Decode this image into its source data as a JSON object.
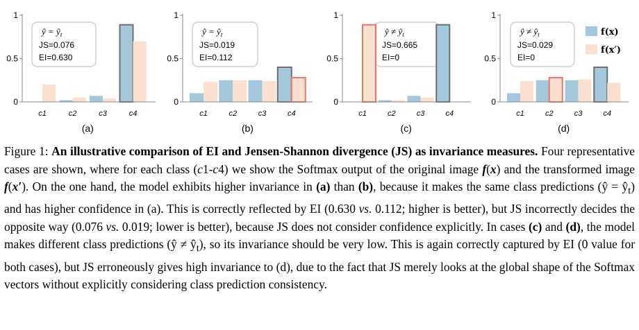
{
  "chart_data": [
    {
      "type": "bar",
      "panel_label": "(a)",
      "categories": [
        "c1",
        "c2",
        "c3",
        "c4"
      ],
      "series": [
        {
          "name": "f(x)",
          "values": [
            0.0,
            0.02,
            0.07,
            0.89
          ]
        },
        {
          "name": "f(x')",
          "values": [
            0.2,
            0.05,
            0.04,
            0.7
          ]
        }
      ],
      "annotation": {
        "header": "ŷ = ŷt",
        "js": "JS=0.076",
        "ei": "EI=0.630"
      },
      "ylim": [
        0,
        1
      ],
      "yticks": [
        "0",
        "0.5",
        "1"
      ],
      "outlined_bars": [
        [
          0,
          3
        ]
      ]
    },
    {
      "type": "bar",
      "panel_label": "(b)",
      "categories": [
        "c1",
        "c2",
        "c3",
        "c4"
      ],
      "series": [
        {
          "name": "f(x)",
          "values": [
            0.1,
            0.25,
            0.25,
            0.4
          ]
        },
        {
          "name": "f(x')",
          "values": [
            0.23,
            0.25,
            0.24,
            0.28
          ]
        }
      ],
      "annotation": {
        "header": "ŷ = ŷt",
        "js": "JS=0.019",
        "ei": "EI=0.112"
      },
      "ylim": [
        0,
        1
      ],
      "yticks": [
        "0",
        "0.5",
        "1"
      ],
      "outlined_bars": [
        [
          0,
          3
        ],
        [
          1,
          3
        ]
      ]
    },
    {
      "type": "bar",
      "panel_label": "(c)",
      "categories": [
        "c1",
        "c2",
        "c3",
        "c4"
      ],
      "series": [
        {
          "name": "f(x)",
          "values": [
            0.0,
            0.02,
            0.07,
            0.89
          ]
        },
        {
          "name": "f(x')",
          "values": [
            0.89,
            0.02,
            0.05,
            0.0
          ]
        }
      ],
      "annotation": {
        "header": "ŷ ≠ ŷt",
        "js": "JS=0.665",
        "ei": "EI=0"
      },
      "ylim": [
        0,
        1
      ],
      "yticks": [
        "0",
        "0.5",
        "1"
      ],
      "outlined_bars": [
        [
          0,
          3
        ],
        [
          1,
          0
        ]
      ]
    },
    {
      "type": "bar",
      "panel_label": "(d)",
      "categories": [
        "c1",
        "c2",
        "c3",
        "c4"
      ],
      "series": [
        {
          "name": "f(x)",
          "values": [
            0.1,
            0.25,
            0.25,
            0.4
          ]
        },
        {
          "name": "f(x')",
          "values": [
            0.24,
            0.28,
            0.26,
            0.22
          ]
        }
      ],
      "annotation": {
        "header": "ŷ ≠ ŷt",
        "js": "JS=0.029",
        "ei": "EI=0"
      },
      "ylim": [
        0,
        1
      ],
      "yticks": [
        "0",
        "0.5",
        "1"
      ],
      "outlined_bars": [
        [
          0,
          3
        ],
        [
          1,
          1
        ]
      ],
      "legend": {
        "placement": "top-right",
        "entries": [
          "f(x)",
          "f(x′)"
        ]
      }
    }
  ],
  "colors": {
    "orig": "#a3c8dc",
    "trans": "#fbe0d0",
    "outline_orig": "#6f6f6f",
    "outline_trans": "#e8776a",
    "axis": "#8a8a8a",
    "box": "#c8c8c8"
  },
  "caption": {
    "fig_label": "Figure 1:",
    "bold_title": "An illustrative comparison of EI and Jensen-Shannon divergence (JS) as invariance measures.",
    "p1": "Four representative cases are shown, where for each class (",
    "p1_cls": "c",
    "p1_a": "1-",
    "p1_cls2": "c",
    "p1_b": "4) we show the Softmax output of the original image ",
    "f1": "f",
    "x1": "x",
    "p2": " and the transformed image ",
    "f2": "f",
    "x2": "x′",
    "p3": ". On the one hand, the model exhibits higher invariance in ",
    "a_bold": "(a)",
    "p4": " than ",
    "b_bold": "(b)",
    "p5": ", because it makes the same class predictions (ŷ = ŷ",
    "sub_t": "t",
    "p6": ") and has higher confidence in (a). This is correctly reflected by EI (0.630 ",
    "vs": "vs.",
    "p7": " 0.112; higher is better), but JS incorrectly decides the opposite way (0.076 ",
    "vs2": "vs.",
    "p8": " 0.019; lower is better), because JS does not consider confidence explicitly. In cases ",
    "c_bold": "(c)",
    "p9": " and ",
    "d_bold": "(d)",
    "p10": ", the model makes different class predictions (ŷ ≠ ŷ",
    "sub_t2": "t",
    "p11": "), so its invariance should be very low. This is again correctly captured by EI (0 value for both cases), but JS erroneously gives high invariance to (d), due to the fact that JS merely looks at the global shape of the Softmax vectors without explicitly considering class prediction consistency."
  }
}
